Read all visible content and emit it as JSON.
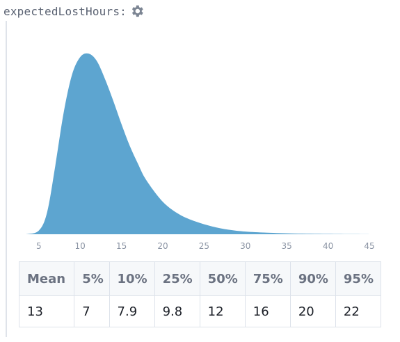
{
  "variable": {
    "name": "expectedLostHours:",
    "settings_icon": "gear-icon"
  },
  "chart_data": {
    "type": "area",
    "xlim": [
      3,
      45
    ],
    "x_ticks": [
      5,
      10,
      15,
      20,
      25,
      30,
      35,
      40,
      45
    ],
    "x": [
      3.5,
      5,
      6,
      7,
      8,
      9,
      10,
      11,
      12,
      13,
      14,
      15,
      16,
      17,
      18,
      20,
      22,
      24,
      26,
      28,
      30,
      33,
      36,
      40,
      45
    ],
    "y": [
      0.0,
      0.02,
      0.12,
      0.38,
      0.67,
      0.88,
      0.98,
      1.0,
      0.96,
      0.86,
      0.74,
      0.61,
      0.49,
      0.39,
      0.3,
      0.18,
      0.11,
      0.07,
      0.043,
      0.025,
      0.015,
      0.008,
      0.004,
      0.002,
      0.0
    ],
    "grid": false,
    "fill_color": "#5da5d0"
  },
  "stats": {
    "headers": [
      "Mean",
      "5%",
      "10%",
      "25%",
      "50%",
      "75%",
      "90%",
      "95%"
    ],
    "values": [
      "13",
      "7",
      "7.9",
      "9.8",
      "12",
      "16",
      "20",
      "22"
    ]
  }
}
